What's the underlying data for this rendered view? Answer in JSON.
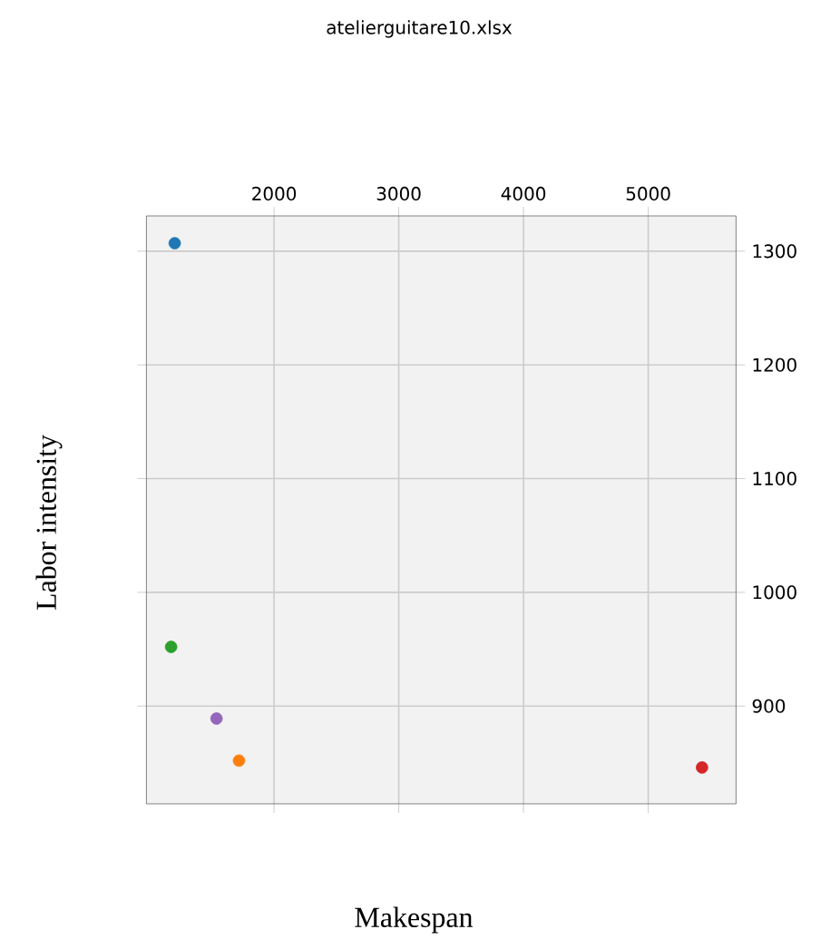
{
  "chart_data": {
    "type": "scatter",
    "title": "atelierguitare10.xlsx",
    "xlabel": "Makespan",
    "ylabel": "Labor intensity",
    "x": [
      1204,
      1719,
      1175,
      5431,
      1539
    ],
    "values": [
      1307,
      852,
      952,
      846,
      889
    ],
    "colors": [
      "#1f77b4",
      "#ff7f0e",
      "#2ca02c",
      "#d62728",
      "#9467bd"
    ],
    "xlim": [
      977,
      5704
    ],
    "xticks": [
      2000,
      3000,
      4000,
      5000
    ],
    "ylim": [
      814,
      1331
    ],
    "yticks": [
      900,
      1000,
      1100,
      1200,
      1300
    ],
    "grid": true,
    "marker": "circle"
  }
}
